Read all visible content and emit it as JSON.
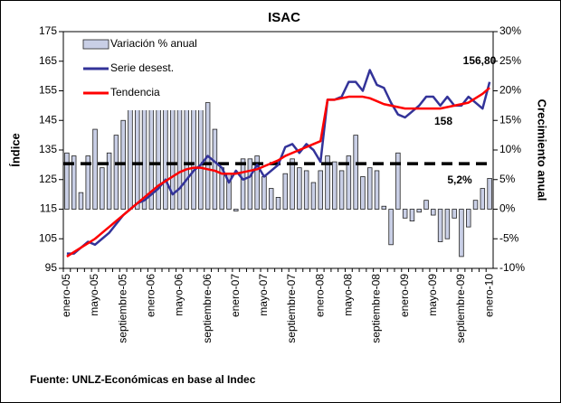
{
  "chart_data": {
    "type": "bar-line",
    "title": "ISAC",
    "ylabel": "Índice",
    "y2label": "Crecimiento  anual",
    "source": "Fuente: UNLZ-Económicas en base al Indec",
    "categories": [
      "enero-05",
      null,
      null,
      null,
      "mayo-05",
      null,
      null,
      null,
      "septiembre-05",
      null,
      null,
      null,
      "enero-06",
      null,
      null,
      null,
      "mayo-06",
      null,
      null,
      null,
      "septiembre-06",
      null,
      null,
      null,
      "enero-07",
      null,
      null,
      null,
      "mayo-07",
      null,
      null,
      null,
      "septiembre-07",
      null,
      null,
      null,
      "enero-08",
      null,
      null,
      null,
      "mayo-08",
      null,
      null,
      null,
      "septiembre-08",
      null,
      null,
      null,
      "enero-09",
      null,
      null,
      null,
      "mayo-09",
      null,
      null,
      null,
      "septiembre-09",
      null,
      null,
      null,
      "enero-10"
    ],
    "series": [
      {
        "name": "Variación % anual",
        "kind": "bar",
        "axis": "y2",
        "color": "#c9cfe6",
        "values": [
          9.5,
          9,
          2.8,
          9,
          13.5,
          7,
          9.5,
          12.5,
          15,
          17,
          18,
          18,
          18,
          18,
          18,
          18,
          18,
          18,
          18,
          18,
          18,
          13.5,
          7,
          6,
          -0.3,
          8.5,
          8.5,
          9,
          5.5,
          3.5,
          2,
          6,
          8.5,
          7,
          6.5,
          4.5,
          6.5,
          9,
          8,
          6.5,
          9,
          12.5,
          5.5,
          7,
          6.5,
          0.5,
          -6,
          9.5,
          -1.5,
          -2,
          -0.5,
          1.5,
          -1,
          -5.5,
          -5,
          -1.5,
          -8,
          -3,
          1.5,
          3.5,
          5.2
        ]
      },
      {
        "name": "Serie desest.",
        "kind": "line",
        "color": "#333399",
        "values": [
          100,
          100,
          102,
          104,
          103,
          105,
          107,
          110,
          113,
          115,
          117,
          118,
          120,
          122,
          125,
          120,
          122,
          125,
          128,
          130,
          133,
          131,
          129,
          124,
          128,
          125,
          126,
          130,
          126,
          128,
          130,
          136,
          137,
          134,
          137,
          135,
          131,
          152,
          152,
          153,
          158,
          158,
          155,
          162,
          157,
          156,
          151,
          147,
          146,
          148,
          150,
          153,
          153,
          150,
          153,
          150,
          150,
          153,
          151,
          149,
          158
        ]
      },
      {
        "name": "Tendencia",
        "kind": "line",
        "color": "#ff0000",
        "values": [
          99,
          100.5,
          102,
          103.5,
          105,
          107,
          109,
          111,
          113,
          115,
          117,
          119,
          121,
          123,
          124.5,
          126,
          127.5,
          128.5,
          129,
          129,
          128.5,
          128,
          127,
          127,
          127,
          127.5,
          128,
          128.5,
          129.5,
          130.5,
          131.5,
          133,
          134,
          135,
          136,
          137,
          138,
          152,
          152,
          152.5,
          153,
          153,
          153,
          152.5,
          151.5,
          150.5,
          150,
          149.5,
          149,
          149,
          149,
          149,
          149,
          149,
          149.5,
          150,
          150.5,
          151,
          152.5,
          154,
          156
        ]
      }
    ],
    "reference_line": 7.7,
    "annotations": [
      "156,80",
      "158",
      "5,2%"
    ],
    "ylim": [
      95,
      175
    ],
    "yticks": [
      95,
      105,
      115,
      125,
      135,
      145,
      155,
      165,
      175
    ],
    "y2lim": [
      -10,
      30
    ],
    "y2ticks": [
      {
        "value": -10,
        "label": "-10%"
      },
      {
        "value": -5,
        "label": "-5%"
      },
      {
        "value": 0,
        "label": "0%"
      },
      {
        "value": 5,
        "label": "5%"
      },
      {
        "value": 10,
        "label": "10%"
      },
      {
        "value": 15,
        "label": "15%"
      },
      {
        "value": 20,
        "label": "20%"
      },
      {
        "value": 25,
        "label": "25%"
      },
      {
        "value": 30,
        "label": "30%"
      }
    ],
    "legend": "upper left"
  }
}
